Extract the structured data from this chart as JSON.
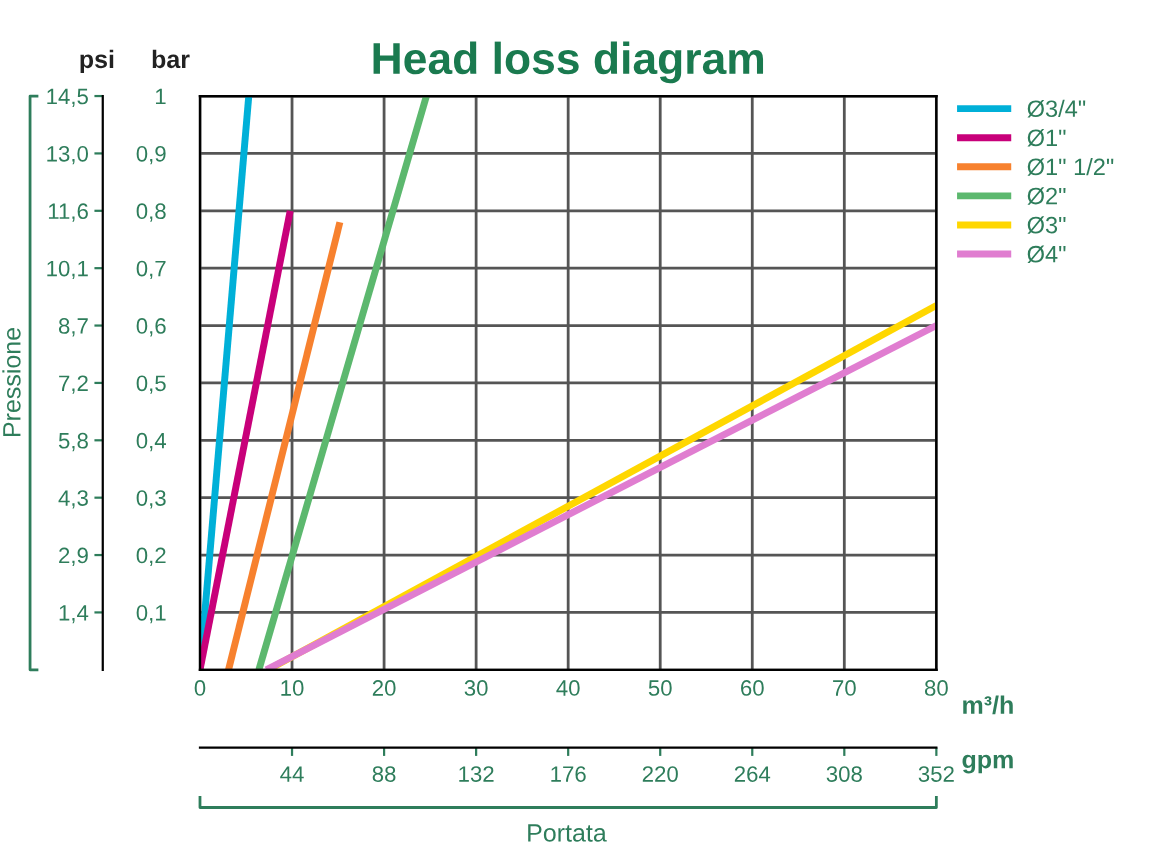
{
  "chart_data": {
    "type": "line",
    "title": "Head loss diagram",
    "xlabel": "m³/h",
    "x2label": "gpm",
    "ylabel": "bar",
    "y2label": "psi",
    "annotations": [
      "Portata",
      "Pressione"
    ],
    "xlim": [
      0,
      80
    ],
    "xticks": [
      0,
      10,
      20,
      30,
      40,
      50,
      60,
      70,
      80
    ],
    "x2lim": [
      0,
      352
    ],
    "x2ticks": [
      44,
      88,
      132,
      176,
      220,
      264,
      308,
      352
    ],
    "ylim": [
      0,
      1
    ],
    "yticks": [
      {
        "value": 0.1,
        "label": "0,1"
      },
      {
        "value": 0.2,
        "label": "0,2"
      },
      {
        "value": 0.3,
        "label": "0,3"
      },
      {
        "value": 0.4,
        "label": "0,4"
      },
      {
        "value": 0.5,
        "label": "0,5"
      },
      {
        "value": 0.6,
        "label": "0,6"
      },
      {
        "value": 0.7,
        "label": "0,7"
      },
      {
        "value": 0.8,
        "label": "0,8"
      },
      {
        "value": 0.9,
        "label": "0,9"
      },
      1
    ],
    "y2lim": [
      0,
      14.5
    ],
    "y2ticks": [
      {
        "value": 1.45,
        "label": "1,4"
      },
      {
        "value": 2.9,
        "label": "2,9"
      },
      {
        "value": 4.35,
        "label": "4,3"
      },
      {
        "value": 5.8,
        "label": "5,8"
      },
      {
        "value": 7.25,
        "label": "7,2"
      },
      {
        "value": 8.7,
        "label": "8,7"
      },
      {
        "value": 10.15,
        "label": "10,1"
      },
      {
        "value": 11.6,
        "label": "11,6"
      },
      {
        "value": 13.05,
        "label": "13,0"
      },
      {
        "value": 14.5,
        "label": "14,5"
      }
    ],
    "grid": true,
    "legend": "top right",
    "line_style": "solid",
    "series": [
      {
        "name": "Ø3/4\"",
        "color": "#00b0d8",
        "x": [
          0,
          5.3
        ],
        "values": [
          0,
          1
        ]
      },
      {
        "name": "Ø1\"",
        "color": "#c8007a",
        "x": [
          0,
          9.8
        ],
        "values": [
          0,
          0.8
        ]
      },
      {
        "name": "Ø1\" 1/2\"",
        "color": "#f7812e",
        "x": [
          3.1,
          15.2
        ],
        "values": [
          0,
          0.78
        ]
      },
      {
        "name": "Ø2\"",
        "color": "#5cb86e",
        "x": [
          6.4,
          24.6
        ],
        "values": [
          0,
          1
        ]
      },
      {
        "name": "Ø3\"",
        "color": "#ffd700",
        "x": [
          7.4,
          80
        ],
        "values": [
          0,
          0.635
        ]
      },
      {
        "name": "Ø4\"",
        "color": "#e07dd0",
        "x": [
          7.2,
          80
        ],
        "values": [
          0,
          0.6
        ]
      }
    ]
  }
}
